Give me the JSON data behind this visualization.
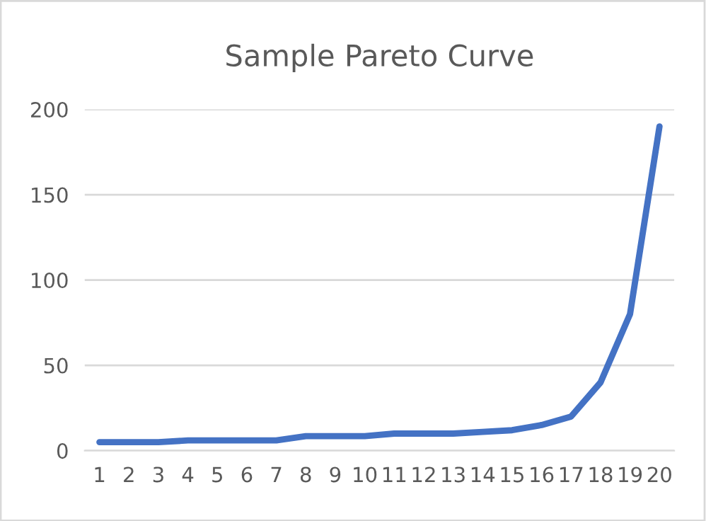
{
  "chart_data": {
    "type": "line",
    "title": "Sample Pareto Curve",
    "categories": [
      "1",
      "2",
      "3",
      "4",
      "5",
      "6",
      "7",
      "8",
      "9",
      "10",
      "11",
      "12",
      "13",
      "14",
      "15",
      "16",
      "17",
      "18",
      "19",
      "20"
    ],
    "series": [
      {
        "color": "#4472c4",
        "values": [
          5,
          5,
          5,
          6,
          6,
          6,
          6,
          8.5,
          8.5,
          8.5,
          10,
          10,
          10,
          11,
          12,
          15,
          20,
          40,
          80,
          190
        ]
      }
    ],
    "ylim": [
      0,
      200
    ],
    "yticks": [
      0,
      50,
      100,
      150,
      200
    ],
    "grid": "y",
    "marker": "none",
    "line_style": "solid"
  }
}
